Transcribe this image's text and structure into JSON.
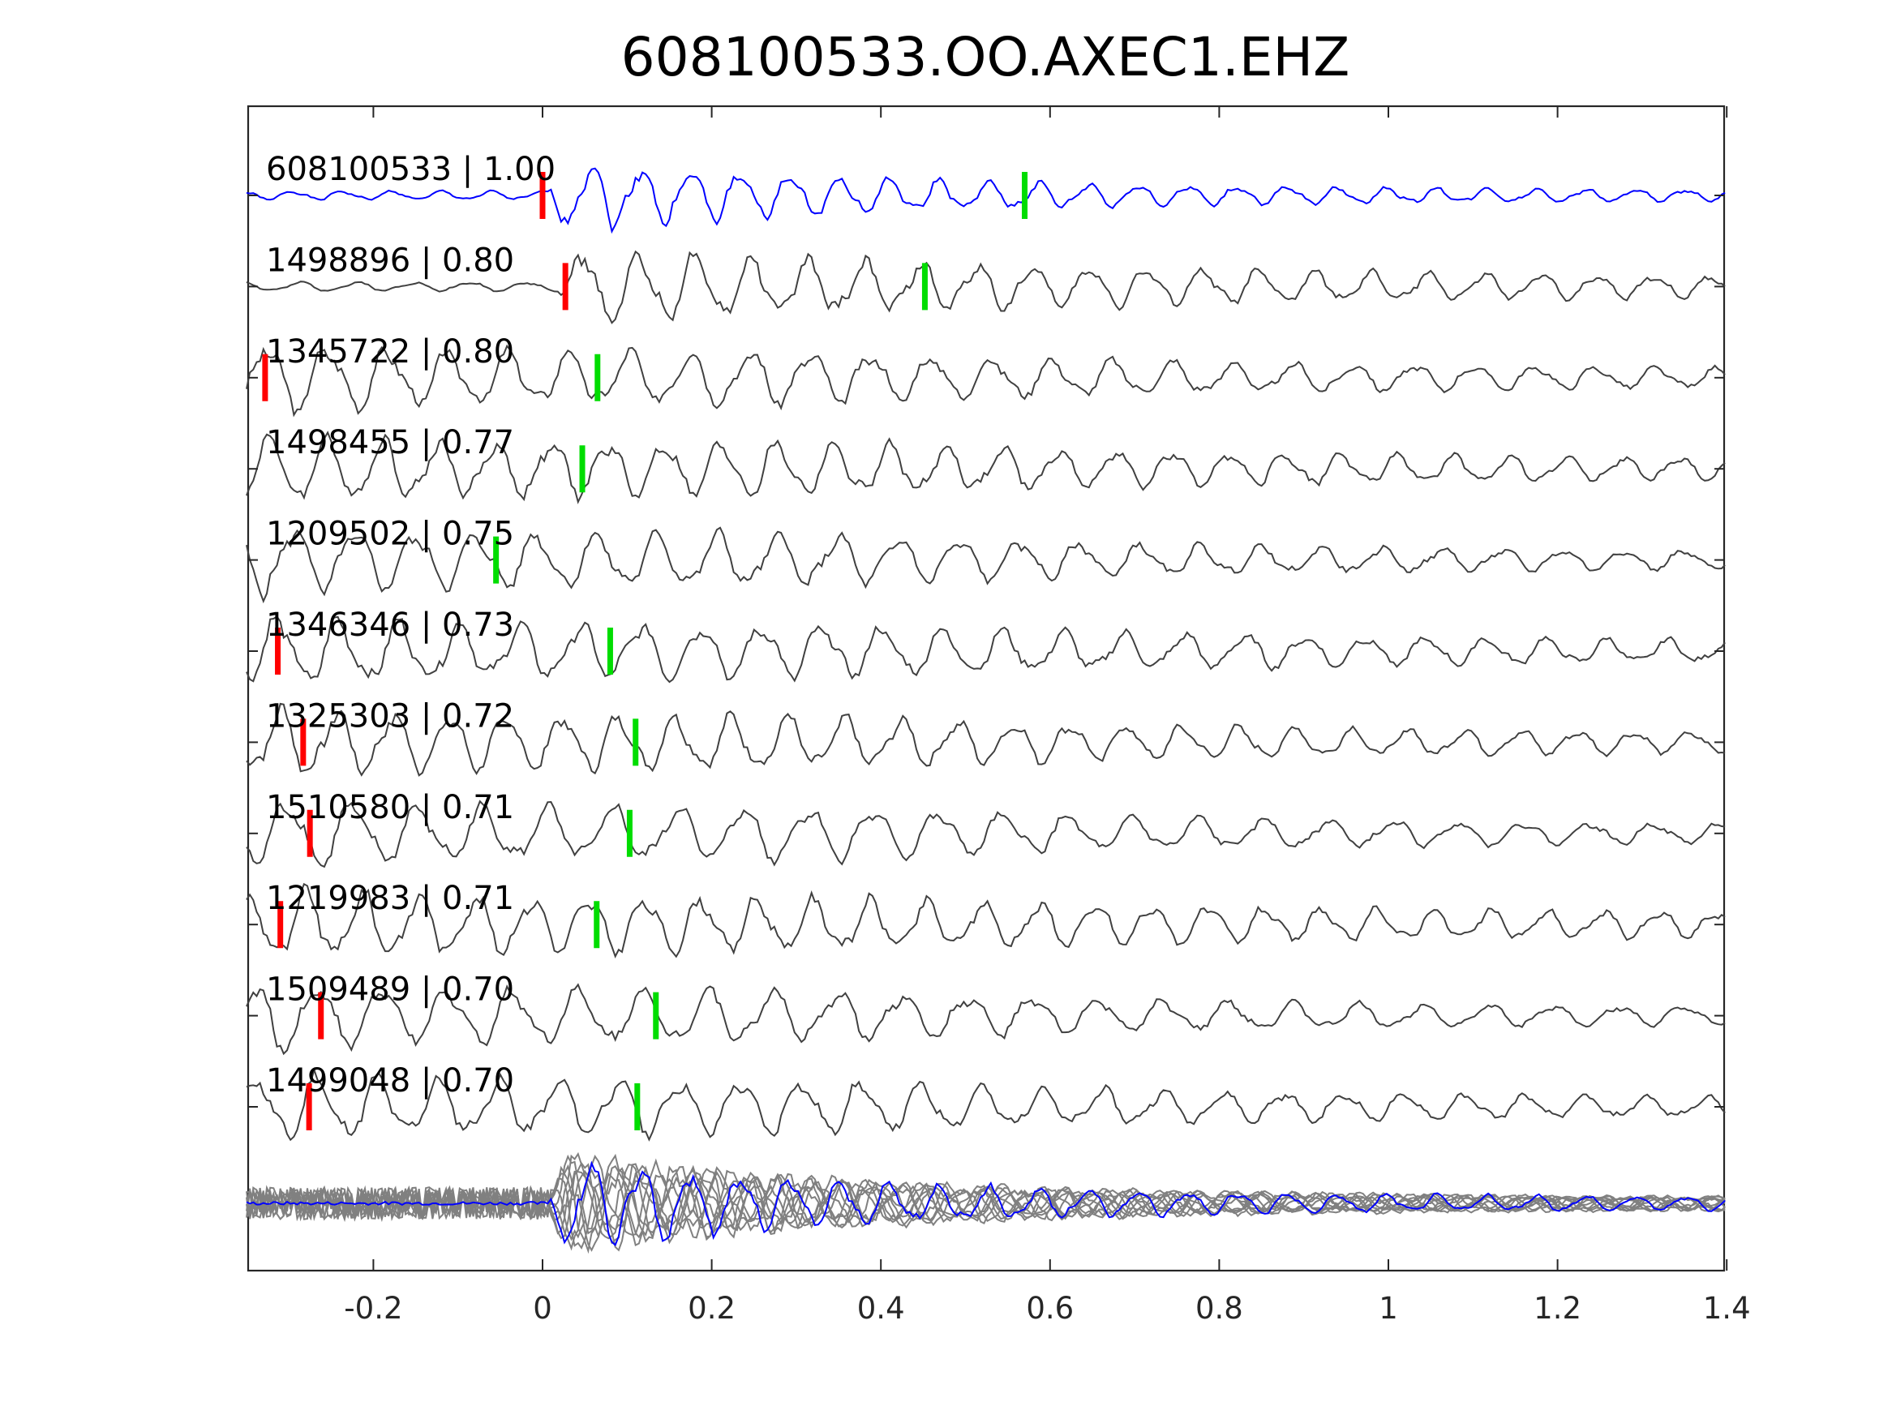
{
  "chart_data": {
    "type": "line",
    "title": "608100533.OO.AXEC1.EHZ",
    "xlabel": "",
    "ylabel": "",
    "xlim": [
      -0.35,
      1.4
    ],
    "xticks": [
      -0.2,
      0,
      0.2,
      0.4,
      0.6,
      0.8,
      1,
      1.2,
      1.4
    ],
    "xtick_labels": [
      "-0.2",
      "0",
      "0.2",
      "0.4",
      "0.6",
      "0.8",
      "1",
      "1.2",
      "1.4"
    ],
    "grid": false,
    "colors": {
      "reference": "#0000ff",
      "trace": "#404040",
      "stack": "#808080",
      "p_pick": "#ff0000",
      "s_pick": "#00dd00",
      "axes": "#262626"
    },
    "series": [
      {
        "id": "608100533",
        "label": "608100533 | 1.00",
        "cc": 1.0,
        "color": "reference",
        "p_pick": 0.0,
        "s_pick": 0.57,
        "onset": 0.01,
        "freq": 17,
        "decay": 2.3,
        "seed": 1
      },
      {
        "id": "1498896",
        "label": "1498896 | 0.80",
        "cc": 0.8,
        "color": "trace",
        "p_pick": 0.027,
        "s_pick": 0.452,
        "onset": 0.02,
        "freq": 15,
        "decay": 1.2,
        "seed": 2
      },
      {
        "id": "1345722",
        "label": "1345722 | 0.80",
        "cc": 0.8,
        "color": "trace",
        "p_pick": -0.328,
        "s_pick": 0.065,
        "onset": -0.35,
        "freq": 14,
        "decay": 1.6,
        "seed": 3
      },
      {
        "id": "1498455",
        "label": "1498455 | 0.77",
        "cc": 0.77,
        "color": "trace",
        "s_pick": 0.047,
        "onset": -0.35,
        "freq": 15,
        "decay": 1.4,
        "seed": 4
      },
      {
        "id": "1209502",
        "label": "1209502 | 0.75",
        "cc": 0.75,
        "color": "trace",
        "s_pick": -0.055,
        "onset": -0.35,
        "freq": 14,
        "decay": 1.8,
        "seed": 5
      },
      {
        "id": "1346346",
        "label": "1346346 | 0.73",
        "cc": 0.73,
        "color": "trace",
        "p_pick": -0.313,
        "s_pick": 0.08,
        "onset": -0.35,
        "freq": 14,
        "decay": 1.3,
        "seed": 6
      },
      {
        "id": "1325303",
        "label": "1325303 | 0.72",
        "cc": 0.72,
        "color": "trace",
        "p_pick": -0.283,
        "s_pick": 0.11,
        "onset": -0.35,
        "freq": 15,
        "decay": 1.5,
        "seed": 7
      },
      {
        "id": "1510580",
        "label": "1510580 | 0.71",
        "cc": 0.71,
        "color": "trace",
        "p_pick": -0.275,
        "s_pick": 0.103,
        "onset": -0.35,
        "freq": 13,
        "decay": 1.7,
        "seed": 8
      },
      {
        "id": "1219983",
        "label": "1219983 | 0.71",
        "cc": 0.71,
        "color": "trace",
        "p_pick": -0.31,
        "s_pick": 0.064,
        "onset": -0.35,
        "freq": 15,
        "decay": 1.1,
        "seed": 9
      },
      {
        "id": "1509489",
        "label": "1509489 | 0.70",
        "cc": 0.7,
        "color": "trace",
        "p_pick": -0.262,
        "s_pick": 0.134,
        "onset": -0.35,
        "freq": 13,
        "decay": 1.9,
        "seed": 10
      },
      {
        "id": "1499048",
        "label": "1499048 | 0.70",
        "cc": 0.7,
        "color": "trace",
        "p_pick": -0.276,
        "s_pick": 0.112,
        "onset": -0.35,
        "freq": 14,
        "decay": 1.6,
        "seed": 11
      }
    ],
    "stack": {
      "overlay_of": "all series aligned",
      "reference_color": "reference",
      "others_color": "stack"
    }
  }
}
